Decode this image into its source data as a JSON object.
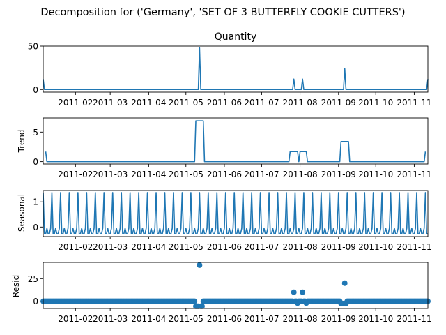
{
  "figure": {
    "suptitle": "Decomposition for ('Germany', 'SET OF 3 BUTTERFLY COOKIE CUTTERS')",
    "series_color": "#1f77b4"
  },
  "chart_data": [
    {
      "type": "line",
      "title": "Quantity",
      "ylabel": "",
      "x_start": "2011-01-06",
      "x_end": "2011-11-12",
      "xticklabels": [
        "2011-02",
        "2011-03",
        "2011-04",
        "2011-05",
        "2011-06",
        "2011-07",
        "2011-08",
        "2011-09",
        "2011-10",
        "2011-11"
      ],
      "yticks": [
        0,
        50
      ],
      "ylim": [
        -3,
        50
      ],
      "baseline": 0,
      "points": [
        {
          "date": "2011-01-06",
          "value": 12
        },
        {
          "date": "2011-01-07",
          "value": 0
        },
        {
          "date": "2011-05-11",
          "value": 0
        },
        {
          "date": "2011-05-12",
          "value": 48
        },
        {
          "date": "2011-05-13",
          "value": 0
        },
        {
          "date": "2011-07-26",
          "value": 0
        },
        {
          "date": "2011-07-27",
          "value": 12
        },
        {
          "date": "2011-07-28",
          "value": 0
        },
        {
          "date": "2011-08-02",
          "value": 0
        },
        {
          "date": "2011-08-03",
          "value": 12
        },
        {
          "date": "2011-08-04",
          "value": 0
        },
        {
          "date": "2011-09-05",
          "value": 0
        },
        {
          "date": "2011-09-06",
          "value": 24
        },
        {
          "date": "2011-09-07",
          "value": 0
        },
        {
          "date": "2011-11-11",
          "value": 0
        },
        {
          "date": "2011-11-12",
          "value": 12
        }
      ]
    },
    {
      "type": "line",
      "title": "",
      "ylabel": "Trend",
      "x_start": "2011-01-06",
      "x_end": "2011-11-12",
      "xticklabels": [
        "2011-02",
        "2011-03",
        "2011-04",
        "2011-05",
        "2011-06",
        "2011-07",
        "2011-08",
        "2011-09",
        "2011-10",
        "2011-11"
      ],
      "yticks": [
        0,
        5
      ],
      "ylim": [
        -0.4,
        7.4
      ],
      "points": [
        {
          "date": "2011-01-08",
          "value": 1.7
        },
        {
          "date": "2011-01-09",
          "value": 0
        },
        {
          "date": "2011-05-08",
          "value": 0
        },
        {
          "date": "2011-05-09",
          "value": 6.9
        },
        {
          "date": "2011-05-15",
          "value": 6.9
        },
        {
          "date": "2011-05-16",
          "value": 0
        },
        {
          "date": "2011-07-23",
          "value": 0
        },
        {
          "date": "2011-07-24",
          "value": 1.7
        },
        {
          "date": "2011-07-30",
          "value": 1.7
        },
        {
          "date": "2011-07-31",
          "value": 0
        },
        {
          "date": "2011-08-01",
          "value": 1.7
        },
        {
          "date": "2011-08-06",
          "value": 1.7
        },
        {
          "date": "2011-08-07",
          "value": 0
        },
        {
          "date": "2011-09-02",
          "value": 0
        },
        {
          "date": "2011-09-03",
          "value": 3.4
        },
        {
          "date": "2011-09-09",
          "value": 3.4
        },
        {
          "date": "2011-09-10",
          "value": 0
        },
        {
          "date": "2011-11-09",
          "value": 0
        },
        {
          "date": "2011-11-10",
          "value": 1.7
        }
      ]
    },
    {
      "type": "line",
      "title": "",
      "ylabel": "Seasonal",
      "x_start": "2011-01-06",
      "x_end": "2011-11-12",
      "xticklabels": [
        "2011-02",
        "2011-03",
        "2011-04",
        "2011-05",
        "2011-06",
        "2011-07",
        "2011-08",
        "2011-09",
        "2011-10",
        "2011-11"
      ],
      "yticks": [
        0,
        1
      ],
      "ylim": [
        -0.38,
        1.45
      ],
      "period_days": 7,
      "weekly_pattern": [
        1.37,
        -0.27,
        -0.27,
        -0.05,
        -0.27,
        -0.27,
        -0.05
      ],
      "first_peak_date": "2011-01-06"
    },
    {
      "type": "scatter",
      "title": "",
      "ylabel": "Resid",
      "x_start": "2011-01-06",
      "x_end": "2011-11-12",
      "xticklabels": [
        "2011-02",
        "2011-03",
        "2011-04",
        "2011-05",
        "2011-06",
        "2011-07",
        "2011-08",
        "2011-09",
        "2011-10",
        "2011-11"
      ],
      "yticks": [
        0,
        25
      ],
      "ylim": [
        -8,
        43
      ],
      "baseline_value": 0,
      "outliers": [
        {
          "date": "2011-05-12",
          "value": 40
        },
        {
          "date": "2011-07-27",
          "value": 10
        },
        {
          "date": "2011-08-03",
          "value": 10
        },
        {
          "date": "2011-09-06",
          "value": 20
        },
        {
          "date": "2011-05-09",
          "value": -5.5
        },
        {
          "date": "2011-05-10",
          "value": -5.5
        },
        {
          "date": "2011-05-11",
          "value": -5.5
        },
        {
          "date": "2011-05-13",
          "value": -5.5
        },
        {
          "date": "2011-05-14",
          "value": -5.5
        },
        {
          "date": "2011-09-03",
          "value": -2.5
        },
        {
          "date": "2011-09-04",
          "value": -2.5
        },
        {
          "date": "2011-09-05",
          "value": -2.5
        },
        {
          "date": "2011-09-07",
          "value": -2.5
        },
        {
          "date": "2011-07-30",
          "value": -2
        },
        {
          "date": "2011-08-06",
          "value": -2
        }
      ]
    }
  ]
}
